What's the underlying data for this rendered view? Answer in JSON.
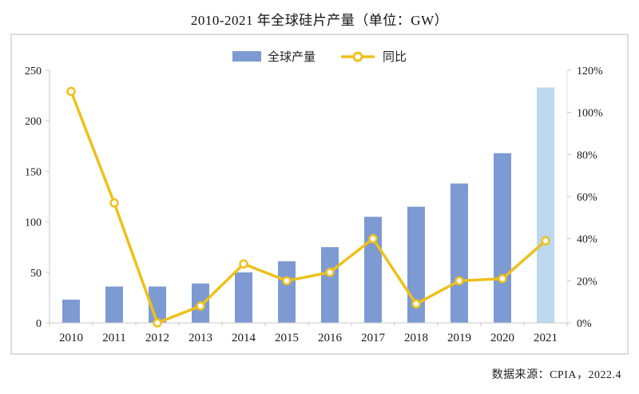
{
  "page": {
    "title": "2010-2021 年全球硅片产量（单位：GW）",
    "source_note": "数据来源：CPIA，2022.4"
  },
  "chart_data": {
    "type": "bar+line",
    "title": "2010-2021 年全球硅片产量（单位：GW）",
    "categories": [
      "2010",
      "2011",
      "2012",
      "2013",
      "2014",
      "2015",
      "2016",
      "2017",
      "2018",
      "2019",
      "2020",
      "2021"
    ],
    "series": [
      {
        "name": "全球产量",
        "type": "bar",
        "axis": "left",
        "unit": "GW",
        "values": [
          23,
          36,
          36,
          39,
          50,
          61,
          75,
          105,
          115,
          138,
          168,
          233
        ]
      },
      {
        "name": "同比",
        "type": "line",
        "axis": "right",
        "unit": "%",
        "values": [
          110,
          57,
          0,
          8,
          28,
          20,
          24,
          40,
          9,
          20,
          21,
          39
        ]
      }
    ],
    "left_axis": {
      "range": [
        0,
        250
      ],
      "tick_labels": [
        "0",
        "50",
        "100",
        "150",
        "200",
        "250"
      ]
    },
    "right_axis": {
      "range": [
        0,
        120
      ],
      "tick_labels": [
        "0%",
        "20%",
        "40%",
        "60%",
        "80%",
        "100%",
        "120%"
      ]
    },
    "grid": false,
    "legend_position": "top",
    "highlight_last_bar": true,
    "colors": {
      "bar": "#7d9bd2",
      "bar_highlight": "#bdd7ee",
      "line": "#eec01b",
      "marker_fill": "#ffffff",
      "axis": "#c9c9c9",
      "text": "#1a1a1a",
      "frame_border": "#dcdcdc"
    }
  }
}
